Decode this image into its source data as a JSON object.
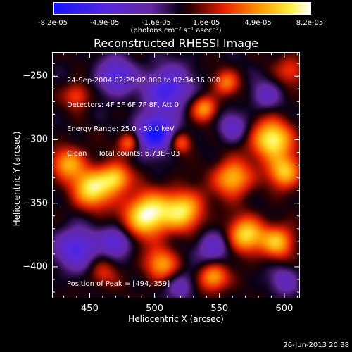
{
  "colorbar": {
    "ticks": [
      "-8.2e-05",
      "-4.9e-05",
      "-1.6e-05",
      "1.6e-05",
      "4.9e-05",
      "8.2e-05"
    ],
    "tick_values": [
      -8.2e-05,
      -4.9e-05,
      -1.6e-05,
      1.6e-05,
      4.9e-05,
      8.2e-05
    ],
    "units": "(photons cm⁻² s⁻¹ asec⁻²)",
    "range": [
      -8.2e-05,
      8.2e-05
    ]
  },
  "chart_data": {
    "type": "heatmap",
    "title": "Reconstructed RHESSI Image",
    "xlabel": "Heliocentric X (arcsec)",
    "ylabel": "Heliocentric Y (arcsec)",
    "xlim": [
      421,
      612
    ],
    "ylim": [
      -425,
      -231
    ],
    "xticks": [
      450,
      500,
      550,
      600
    ],
    "yticks": [
      -250,
      -300,
      -350,
      -400
    ],
    "grid": false,
    "colormap": "blue-purple-red-yellow-white",
    "blobs": [
      {
        "x": 494,
        "y": -359,
        "amp": 8.2e-05,
        "s": 12
      },
      {
        "x": 452,
        "y": -338,
        "amp": 7e-05,
        "s": 11
      },
      {
        "x": 433,
        "y": -318,
        "amp": 5e-05,
        "s": 9
      },
      {
        "x": 470,
        "y": -330,
        "amp": 5.5e-05,
        "s": 8
      },
      {
        "x": 522,
        "y": -355,
        "amp": 6.5e-05,
        "s": 11
      },
      {
        "x": 560,
        "y": -330,
        "amp": 6e-05,
        "s": 10
      },
      {
        "x": 590,
        "y": -300,
        "amp": 7.5e-05,
        "s": 11
      },
      {
        "x": 600,
        "y": -325,
        "amp": 6e-05,
        "s": 9
      },
      {
        "x": 570,
        "y": -375,
        "amp": 6.5e-05,
        "s": 10
      },
      {
        "x": 595,
        "y": -380,
        "amp": 5.5e-05,
        "s": 9
      },
      {
        "x": 505,
        "y": -398,
        "amp": 5e-05,
        "s": 9
      },
      {
        "x": 545,
        "y": -408,
        "amp": 5.5e-05,
        "s": 8
      },
      {
        "x": 480,
        "y": -302,
        "amp": 4.5e-05,
        "s": 6
      },
      {
        "x": 520,
        "y": -302,
        "amp": 4e-05,
        "s": 6
      },
      {
        "x": 538,
        "y": -275,
        "amp": 5e-05,
        "s": 7
      },
      {
        "x": 555,
        "y": -255,
        "amp": 4e-05,
        "s": 7
      },
      {
        "x": 605,
        "y": -245,
        "amp": 3e-05,
        "s": 8
      },
      {
        "x": 440,
        "y": -265,
        "amp": 3.5e-05,
        "s": 7
      },
      {
        "x": 460,
        "y": -405,
        "amp": 2.5e-05,
        "s": 8
      },
      {
        "x": 500,
        "y": -295,
        "amp": -8.2e-05,
        "s": 10
      },
      {
        "x": 510,
        "y": -260,
        "amp": -6e-05,
        "s": 12
      },
      {
        "x": 470,
        "y": -250,
        "amp": -5e-05,
        "s": 10
      },
      {
        "x": 440,
        "y": -385,
        "amp": -5.5e-05,
        "s": 11
      },
      {
        "x": 470,
        "y": -380,
        "amp": -4.5e-05,
        "s": 8
      },
      {
        "x": 560,
        "y": -290,
        "amp": -3.5e-05,
        "s": 8
      },
      {
        "x": 585,
        "y": -265,
        "amp": -3e-05,
        "s": 8
      },
      {
        "x": 545,
        "y": -385,
        "amp": -4e-05,
        "s": 9
      },
      {
        "x": 520,
        "y": -415,
        "amp": -3e-05,
        "s": 8
      },
      {
        "x": 600,
        "y": -410,
        "amp": -3e-05,
        "s": 8
      }
    ]
  },
  "info_lines": [
    "24-Sep-2004 02:29:02.000 to 02:34:16.000",
    "Detectors: 4F 5F 6F 7F 8F, Att 0",
    "Energy Range: 25.0 - 50.0 keV",
    "Clean     Total counts: 6.73E+03"
  ],
  "peak_text": "Position of Peak = [494,-359]",
  "timestamp": "26-Jun-2013 20:38"
}
